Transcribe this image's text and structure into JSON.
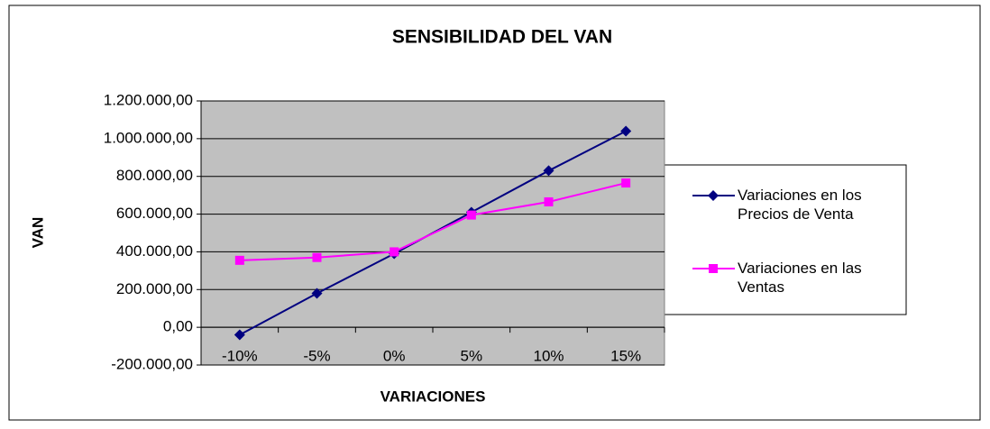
{
  "chart_data": {
    "type": "line",
    "title": "SENSIBILIDAD DEL VAN",
    "x_label": "VARIACIONES",
    "y_label": "VAN",
    "categories": [
      "-10%",
      "-5%",
      "0%",
      "5%",
      "10%",
      "15%"
    ],
    "series": [
      {
        "name": "Variaciones en los Precios de Venta",
        "color": "#000080",
        "marker": "diamond",
        "values": [
          -40000,
          180000,
          390000,
          610000,
          830000,
          1040000
        ]
      },
      {
        "name": "Variaciones en las Ventas",
        "color": "#ff00ff",
        "marker": "square",
        "values": [
          355000,
          370000,
          400000,
          595000,
          665000,
          765000
        ]
      }
    ],
    "ylim": [
      -200000,
      1200000
    ],
    "yticks": [
      {
        "value": -200000,
        "label": "-200.000,00"
      },
      {
        "value": 0,
        "label": "0,00"
      },
      {
        "value": 200000,
        "label": "200.000,00"
      },
      {
        "value": 400000,
        "label": "400.000,00"
      },
      {
        "value": 600000,
        "label": "600.000,00"
      },
      {
        "value": 800000,
        "label": "800.000,00"
      },
      {
        "value": 1000000,
        "label": "1.000.000,00"
      },
      {
        "value": 1200000,
        "label": "1.200.000,00"
      }
    ],
    "grid": true,
    "legend": "right"
  }
}
